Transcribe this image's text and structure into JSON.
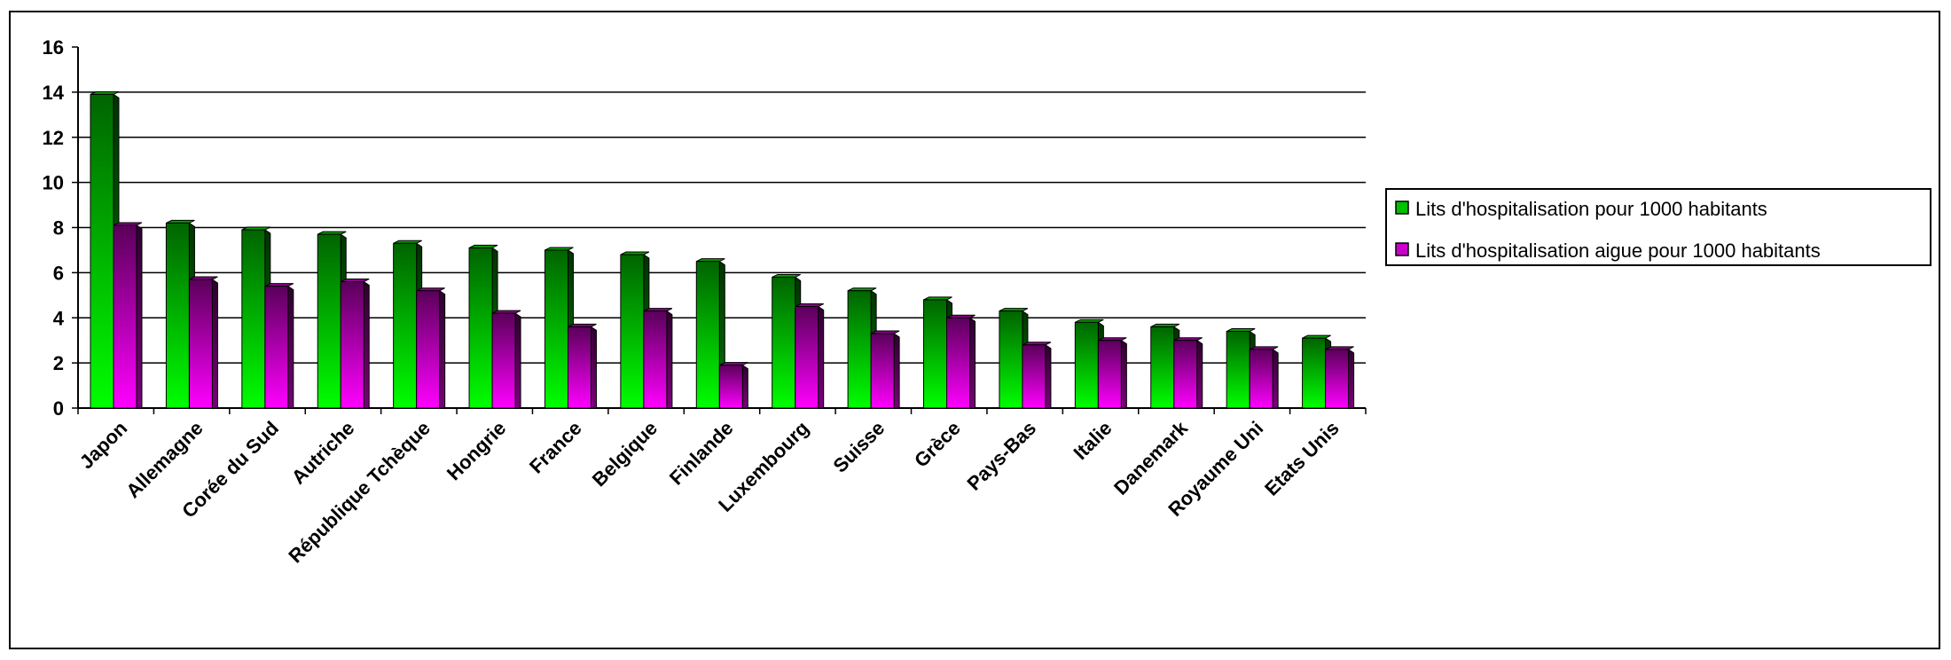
{
  "chart_data": {
    "type": "bar",
    "title": "",
    "xlabel": "",
    "ylabel": "",
    "ylim": [
      0,
      16
    ],
    "yticks": [
      0,
      2,
      4,
      6,
      8,
      10,
      12,
      14,
      16
    ],
    "grid": true,
    "legend_position": "right",
    "categories": [
      "Japon",
      "Allemagne",
      "Corée du Sud",
      "Autriche",
      "République Tchèque",
      "Hongrie",
      "France",
      "Belgique",
      "Finlande",
      "Luxembourg",
      "Suisse",
      "Grèce",
      "Pays-Bas",
      "Italie",
      "Danemark",
      "Royaume Uni",
      "Etats Unis"
    ],
    "series": [
      {
        "name": "Lits d'hospitalisation pour 1000 habitants",
        "color": "#00c000",
        "values": [
          13.9,
          8.2,
          7.9,
          7.7,
          7.3,
          7.1,
          7.0,
          6.8,
          6.5,
          5.8,
          5.2,
          4.8,
          4.3,
          3.8,
          3.6,
          3.4,
          3.1
        ]
      },
      {
        "name": "Lits d'hospitalisation aigue pour 1000 habitants",
        "color": "#cc00cc",
        "values": [
          8.1,
          5.7,
          5.4,
          5.6,
          5.2,
          4.2,
          3.6,
          4.3,
          1.9,
          4.5,
          3.3,
          4.0,
          2.8,
          3.0,
          3.0,
          2.6,
          2.6
        ]
      }
    ]
  }
}
